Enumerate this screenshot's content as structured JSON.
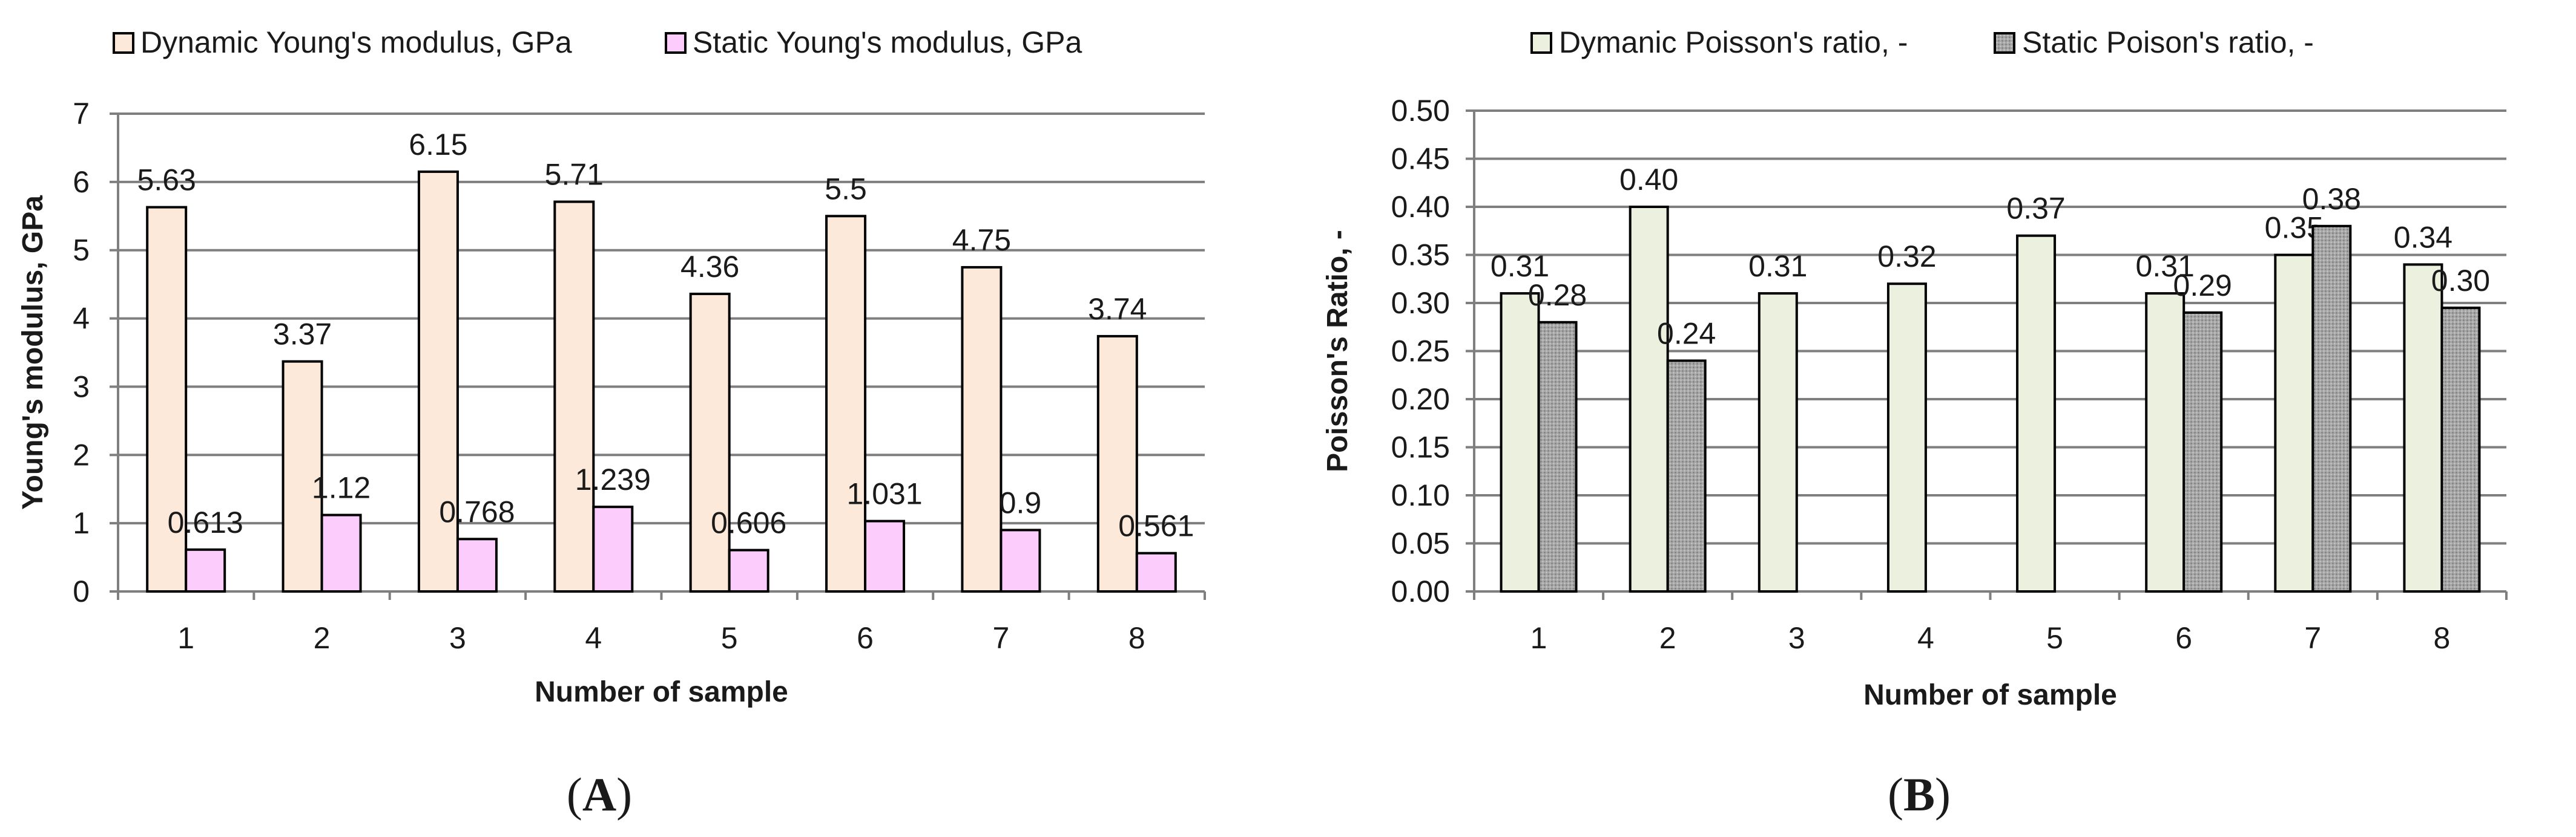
{
  "panels": {
    "A": {
      "open": "(",
      "letter": "A",
      "close": ")"
    },
    "B": {
      "open": "(",
      "letter": "B",
      "close": ")"
    }
  },
  "chart_data": [
    {
      "type": "bar",
      "panel": "A",
      "xlabel": "Number of sample",
      "ylabel": "Young's modulus, GPa",
      "categories": [
        "1",
        "2",
        "3",
        "4",
        "5",
        "6",
        "7",
        "8"
      ],
      "ylim": [
        0,
        7
      ],
      "yticks": [
        0,
        1,
        2,
        3,
        4,
        5,
        6,
        7
      ],
      "ytick_labels": [
        "0",
        "1",
        "2",
        "3",
        "4",
        "5",
        "6",
        "7"
      ],
      "grid": true,
      "legend_position": "top",
      "series": [
        {
          "name": "Dynamic Young's modulus, GPa",
          "color": "#fde9d9",
          "pattern": "solid",
          "values": [
            5.63,
            3.37,
            6.15,
            5.71,
            4.36,
            5.5,
            4.75,
            3.74
          ],
          "labels": [
            "5.63",
            "3.37",
            "6.15",
            "5.71",
            "4.36",
            "5.5",
            "4.75",
            "3.74"
          ]
        },
        {
          "name": "Static Young's modulus, GPa",
          "color": "#fccdfc",
          "pattern": "solid",
          "values": [
            0.613,
            1.12,
            0.768,
            1.239,
            0.606,
            1.031,
            0.9,
            0.561
          ],
          "labels": [
            "0.613",
            "1.12",
            "0.768",
            "1.239",
            "0.606",
            "1.031",
            "0.9",
            "0.561"
          ]
        }
      ]
    },
    {
      "type": "bar",
      "panel": "B",
      "xlabel": "Number of sample",
      "ylabel": "Poisson's Ratio, -",
      "categories": [
        "1",
        "2",
        "3",
        "4",
        "5",
        "6",
        "7",
        "8"
      ],
      "ylim": [
        0,
        0.5
      ],
      "yticks": [
        0,
        0.05,
        0.1,
        0.15,
        0.2,
        0.25,
        0.3,
        0.35,
        0.4,
        0.45,
        0.5
      ],
      "ytick_labels": [
        "0.00",
        "0.05",
        "0.10",
        "0.15",
        "0.20",
        "0.25",
        "0.30",
        "0.35",
        "0.40",
        "0.45",
        "0.50"
      ],
      "grid": true,
      "legend_position": "top",
      "series": [
        {
          "name": "Dymanic Poisson's ratio, -",
          "color": "#ebf1de",
          "pattern": "solid",
          "values": [
            0.31,
            0.4,
            0.31,
            0.32,
            0.37,
            0.31,
            0.35,
            0.34
          ],
          "labels": [
            "0.31",
            "0.40",
            "0.31",
            "0.32",
            "0.37",
            "0.31",
            "0.35",
            "0.34"
          ]
        },
        {
          "name": "Static Poison's ratio, -",
          "color": "#a6a6a6",
          "pattern": "dots",
          "values": [
            0.28,
            0.24,
            null,
            null,
            null,
            0.29,
            0.38,
            0.295
          ],
          "labels": [
            "0.28",
            "0.24",
            null,
            null,
            null,
            "0.29",
            "0.38",
            "0.30"
          ]
        }
      ]
    }
  ]
}
